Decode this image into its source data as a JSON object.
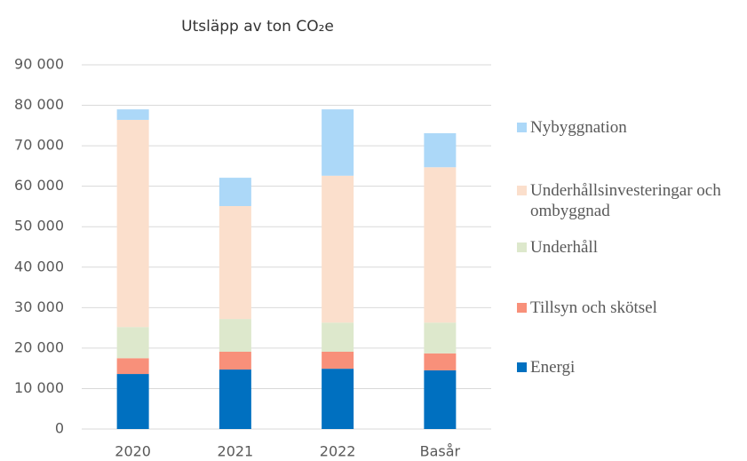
{
  "chart_data": {
    "type": "stacked_bar",
    "title": "Utsläpp av ton CO₂e",
    "categories": [
      "2020",
      "2021",
      "2022",
      "Basår"
    ],
    "series": [
      {
        "name": "Energi",
        "color": "#0070c0",
        "values": [
          13600,
          14700,
          14900,
          14500
        ]
      },
      {
        "name": "Tillsyn och skötsel",
        "color": "#f8907a",
        "values": [
          3900,
          4400,
          4200,
          4200
        ]
      },
      {
        "name": "Underhåll",
        "color": "#dde8cc",
        "values": [
          7700,
          8100,
          7200,
          7600
        ]
      },
      {
        "name": "Underhållsinvesteringar och ombyggnad",
        "color": "#fbdfcc",
        "values": [
          51200,
          27900,
          36300,
          38400
        ]
      },
      {
        "name": "Nybyggnation",
        "color": "#acd8f8",
        "values": [
          2600,
          7000,
          16400,
          8400
        ]
      }
    ],
    "ylim": [
      0,
      90000
    ],
    "yticks": [
      0,
      {
        "value": 10000,
        "label": "10 000"
      },
      {
        "value": 20000,
        "label": "20 000"
      },
      {
        "value": 30000,
        "label": "30 000"
      },
      {
        "value": 40000,
        "label": "40 000"
      },
      {
        "value": 50000,
        "label": "50 000"
      },
      {
        "value": 60000,
        "label": "60 000"
      },
      {
        "value": 70000,
        "label": "70 000"
      },
      {
        "value": 80000,
        "label": "80 000"
      },
      {
        "value": 90000,
        "label": "90 000"
      }
    ],
    "grid": true,
    "legend": "right"
  }
}
